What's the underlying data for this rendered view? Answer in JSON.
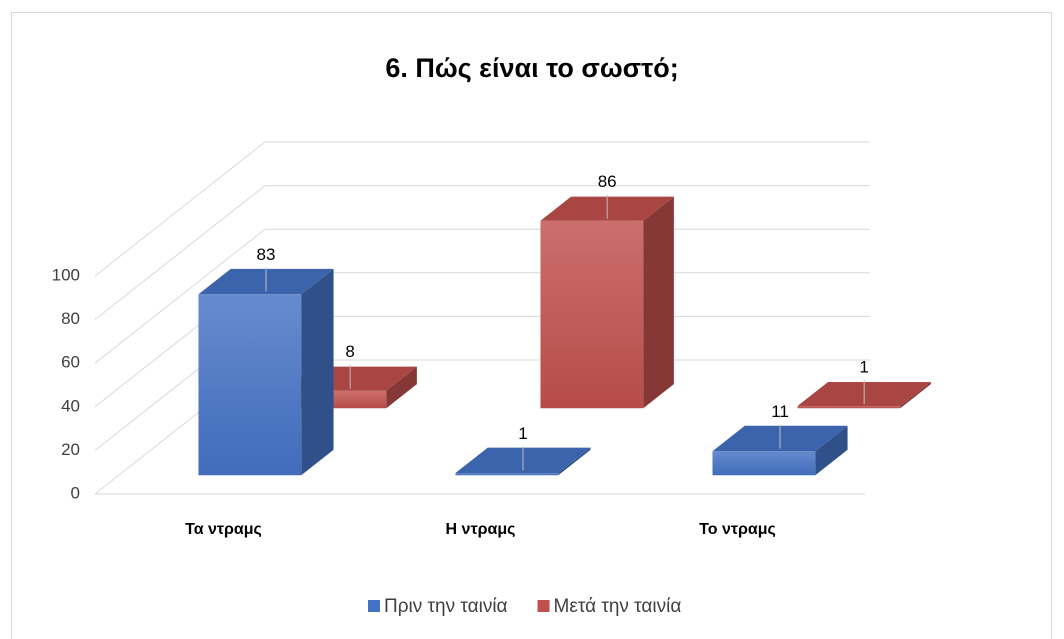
{
  "chart_data": {
    "type": "bar3d",
    "title": "6. Πώς είναι το σωστό;",
    "categories": [
      "Τα ντραμς",
      "Η ντραμς",
      "Το ντραμς"
    ],
    "series": [
      {
        "name": "Πριν την ταινία",
        "color": "#4472c4",
        "values": [
          83,
          1,
          11
        ]
      },
      {
        "name": "Μετά την ταινία",
        "color": "#c0504d",
        "values": [
          8,
          86,
          1
        ]
      }
    ],
    "ylim": [
      0,
      100
    ],
    "yticks": [
      0,
      20,
      40,
      60,
      80,
      100
    ],
    "grid": true,
    "legend": "bottom"
  }
}
